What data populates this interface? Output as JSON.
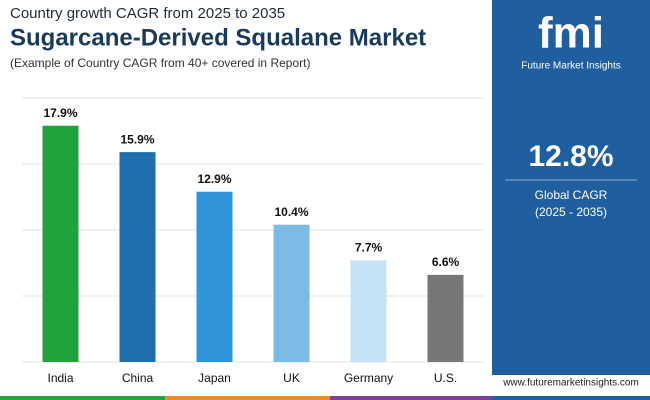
{
  "chart_data": {
    "type": "bar",
    "supertitle": "Country growth CAGR from 2025 to 2035",
    "title": "Sugarcane-Derived Squalane Market",
    "subtitle": "(Example of Country CAGR from 40+ covered in Report)",
    "categories": [
      "India",
      "China",
      "Japan",
      "UK",
      "Germany",
      "U.S."
    ],
    "values": [
      17.9,
      15.9,
      12.9,
      10.4,
      7.7,
      6.6
    ],
    "value_labels": [
      "17.9%",
      "15.9%",
      "12.9%",
      "10.4%",
      "7.7%",
      "6.6%"
    ],
    "colors": [
      "#1fa33a",
      "#1f6fae",
      "#2f95d8",
      "#7cbce4",
      "#c6e3f5",
      "#777777"
    ],
    "ylim": [
      0,
      20
    ],
    "yticks": [
      0,
      5,
      10,
      15,
      20
    ],
    "grid": true
  },
  "panel": {
    "brand": "fmi",
    "brand_name": "Future Market Insights",
    "value": "12.8%",
    "label": "Global CAGR",
    "period": "(2025 - 2035)"
  },
  "footer": {
    "website": "www.futuremarketinsights.com"
  }
}
